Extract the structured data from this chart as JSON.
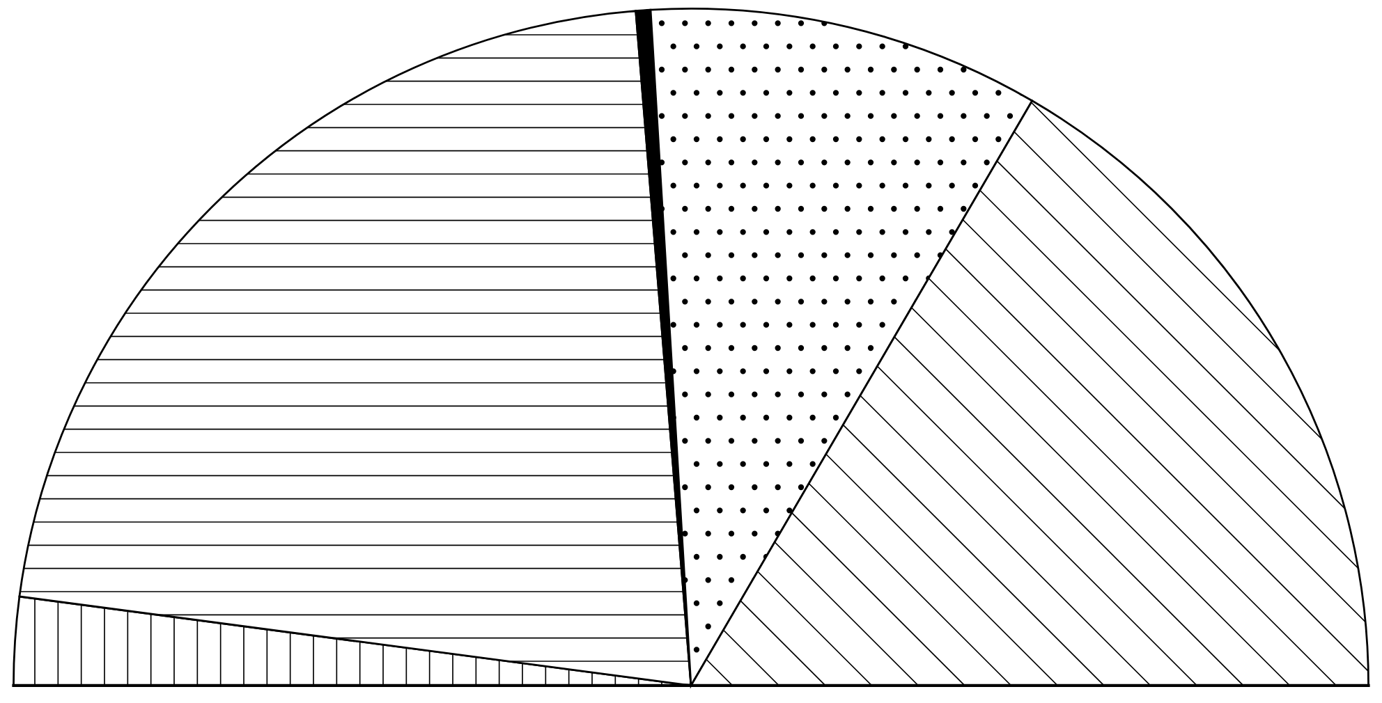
{
  "chart_data": {
    "type": "pie",
    "categories": [
      null,
      null,
      null,
      null,
      null
    ],
    "values": [
      4.2,
      43.2,
      0.7,
      18.7,
      33.2
    ],
    "colors": [
      "#ffffff",
      "#ffffff",
      "#000000",
      "#ffffff",
      "#ffffff"
    ]
  }
}
